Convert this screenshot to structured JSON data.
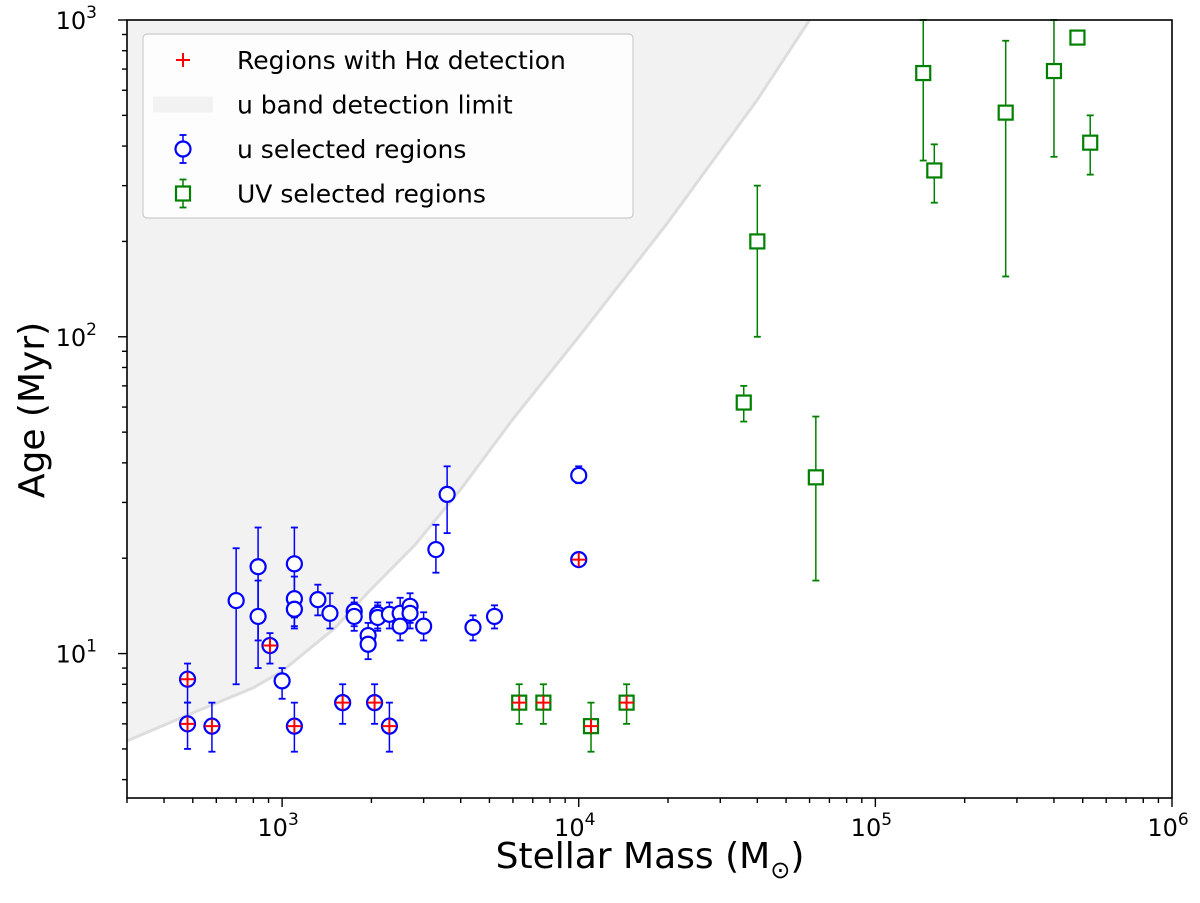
{
  "chart_data": {
    "type": "scatter",
    "xscale": "log",
    "yscale": "log",
    "xlim": [
      300,
      1000000
    ],
    "ylim": [
      3.5,
      1000
    ],
    "xlabel": "Stellar Mass (M",
    "xlabel_sub": "⊙",
    "xlabel_close": ")",
    "ylabel": "Age (Myr)",
    "xticks": [
      {
        "value": 1000,
        "base": "10",
        "exp": "3"
      },
      {
        "value": 10000,
        "base": "10",
        "exp": "4"
      },
      {
        "value": 100000,
        "base": "10",
        "exp": "5"
      },
      {
        "value": 1000000,
        "base": "10",
        "exp": "6"
      }
    ],
    "yticks": [
      {
        "value": 10,
        "base": "10",
        "exp": "1"
      },
      {
        "value": 100,
        "base": "10",
        "exp": "2"
      },
      {
        "value": 1000,
        "base": "10",
        "exp": "3"
      }
    ],
    "legend": {
      "position": "top-left",
      "entries": [
        {
          "label": "Regions with Hα detection",
          "marker": "plus",
          "color": "#ff0000"
        },
        {
          "label": "u band detection limit",
          "marker": "band",
          "color": "#dddddd"
        },
        {
          "label": "u selected regions",
          "marker": "circle",
          "color": "#0000ff"
        },
        {
          "label": "UV selected regions",
          "marker": "square",
          "color": "#008000"
        }
      ]
    },
    "detection_limit": {
      "name": "u band detection limit",
      "fill_color": "#f2f2f2",
      "line_color": "#dddddd",
      "boundary": [
        [
          300,
          5.3
        ],
        [
          500,
          6.5
        ],
        [
          800,
          7.8
        ],
        [
          1000,
          8.8
        ],
        [
          1500,
          12
        ],
        [
          2000,
          16
        ],
        [
          2800,
          22
        ],
        [
          4000,
          33
        ],
        [
          6000,
          55
        ],
        [
          10000,
          100
        ],
        [
          20000,
          230
        ],
        [
          40000,
          560
        ],
        [
          60000,
          1000
        ]
      ]
    },
    "series": [
      {
        "name": "u selected regions",
        "marker": "circle",
        "color": "#0000ff",
        "points": [
          {
            "x": 480,
            "y": 8.3,
            "ylo": 7.0,
            "yhi": 9.3
          },
          {
            "x": 480,
            "y": 6.0,
            "ylo": 5.0,
            "yhi": 7.0
          },
          {
            "x": 580,
            "y": 5.9,
            "ylo": 4.9,
            "yhi": 7.0
          },
          {
            "x": 700,
            "y": 14.7,
            "ylo": 8.0,
            "yhi": 21.5
          },
          {
            "x": 830,
            "y": 18.8,
            "ylo": 9.0,
            "yhi": 25.0
          },
          {
            "x": 830,
            "y": 13.1,
            "ylo": 11.0,
            "yhi": 17.0
          },
          {
            "x": 910,
            "y": 10.6,
            "ylo": 9.3,
            "yhi": 11.6
          },
          {
            "x": 1000,
            "y": 8.2,
            "ylo": 7.2,
            "yhi": 9.0
          },
          {
            "x": 1100,
            "y": 19.2,
            "ylo": 12.0,
            "yhi": 25.0
          },
          {
            "x": 1100,
            "y": 14.9,
            "ylo": 13.0,
            "yhi": 17.5
          },
          {
            "x": 1100,
            "y": 13.8,
            "ylo": 12.2,
            "yhi": 15.5
          },
          {
            "x": 1100,
            "y": 5.9,
            "ylo": 4.9,
            "yhi": 7.0
          },
          {
            "x": 1320,
            "y": 14.8,
            "ylo": 13.2,
            "yhi": 16.5
          },
          {
            "x": 1450,
            "y": 13.4,
            "ylo": 12.0,
            "yhi": 15.5
          },
          {
            "x": 1600,
            "y": 7.0,
            "ylo": 6.0,
            "yhi": 8.0
          },
          {
            "x": 1750,
            "y": 13.6,
            "ylo": 12.2,
            "yhi": 15.0
          },
          {
            "x": 1750,
            "y": 13.1,
            "ylo": 11.8,
            "yhi": 14.5
          },
          {
            "x": 1950,
            "y": 11.4,
            "ylo": 10.2,
            "yhi": 12.5
          },
          {
            "x": 1950,
            "y": 10.7,
            "ylo": 9.6,
            "yhi": 11.8
          },
          {
            "x": 2050,
            "y": 7.0,
            "ylo": 6.0,
            "yhi": 8.0
          },
          {
            "x": 2100,
            "y": 13.3,
            "ylo": 12.0,
            "yhi": 14.5
          },
          {
            "x": 2100,
            "y": 13.0,
            "ylo": 11.8,
            "yhi": 14.2
          },
          {
            "x": 2300,
            "y": 13.3,
            "ylo": 12.0,
            "yhi": 14.5
          },
          {
            "x": 2300,
            "y": 5.9,
            "ylo": 4.9,
            "yhi": 7.0
          },
          {
            "x": 2500,
            "y": 13.4,
            "ylo": 12.0,
            "yhi": 15.0
          },
          {
            "x": 2500,
            "y": 12.2,
            "ylo": 11.0,
            "yhi": 13.5
          },
          {
            "x": 2700,
            "y": 14.1,
            "ylo": 12.5,
            "yhi": 15.5
          },
          {
            "x": 2700,
            "y": 13.4,
            "ylo": 12.0,
            "yhi": 14.8
          },
          {
            "x": 3000,
            "y": 12.2,
            "ylo": 11.0,
            "yhi": 13.5
          },
          {
            "x": 3300,
            "y": 21.3,
            "ylo": 18.0,
            "yhi": 25.5
          },
          {
            "x": 3600,
            "y": 31.8,
            "ylo": 24.0,
            "yhi": 39.0
          },
          {
            "x": 4400,
            "y": 12.1,
            "ylo": 11.0,
            "yhi": 13.2
          },
          {
            "x": 5200,
            "y": 13.1,
            "ylo": 12.0,
            "yhi": 14.2
          },
          {
            "x": 10000,
            "y": 36.5,
            "ylo": 34.5,
            "yhi": 39.0
          },
          {
            "x": 10000,
            "y": 19.8,
            "ylo": 19.0,
            "yhi": 20.8
          }
        ]
      },
      {
        "name": "UV selected regions",
        "marker": "square",
        "color": "#008000",
        "points": [
          {
            "x": 6300,
            "y": 7.0,
            "ylo": 6.0,
            "yhi": 8.0
          },
          {
            "x": 7600,
            "y": 7.0,
            "ylo": 6.0,
            "yhi": 8.0
          },
          {
            "x": 11000,
            "y": 5.9,
            "ylo": 4.9,
            "yhi": 7.0
          },
          {
            "x": 14500,
            "y": 7.0,
            "ylo": 6.0,
            "yhi": 8.0
          },
          {
            "x": 36000,
            "y": 62,
            "ylo": 54,
            "yhi": 70
          },
          {
            "x": 40000,
            "y": 200,
            "ylo": 100,
            "yhi": 300
          },
          {
            "x": 63000,
            "y": 36,
            "ylo": 17,
            "yhi": 56
          },
          {
            "x": 145000,
            "y": 680,
            "ylo": 360,
            "yhi": 1000
          },
          {
            "x": 158000,
            "y": 335,
            "ylo": 265,
            "yhi": 405
          },
          {
            "x": 275000,
            "y": 510,
            "ylo": 155,
            "yhi": 860
          },
          {
            "x": 400000,
            "y": 690,
            "ylo": 370,
            "yhi": 1000
          },
          {
            "x": 480000,
            "y": 880,
            "ylo": 880,
            "yhi": 880
          },
          {
            "x": 530000,
            "y": 410,
            "ylo": 325,
            "yhi": 500
          }
        ]
      },
      {
        "name": "Regions with Hα detection",
        "marker": "plus",
        "color": "#ff0000",
        "points": [
          {
            "x": 480,
            "y": 8.3
          },
          {
            "x": 480,
            "y": 6.0
          },
          {
            "x": 580,
            "y": 5.9
          },
          {
            "x": 910,
            "y": 10.6
          },
          {
            "x": 1100,
            "y": 5.9
          },
          {
            "x": 1600,
            "y": 7.0
          },
          {
            "x": 2050,
            "y": 7.0
          },
          {
            "x": 2300,
            "y": 5.9
          },
          {
            "x": 10000,
            "y": 19.8
          },
          {
            "x": 6300,
            "y": 7.0
          },
          {
            "x": 7600,
            "y": 7.0
          },
          {
            "x": 11000,
            "y": 5.9
          },
          {
            "x": 14500,
            "y": 7.0
          }
        ]
      }
    ]
  }
}
